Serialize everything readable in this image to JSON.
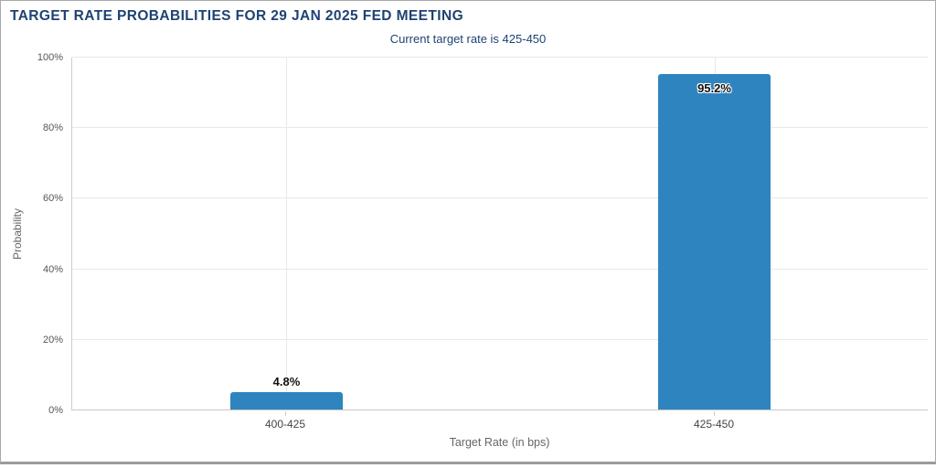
{
  "chart_data": {
    "type": "bar",
    "title": "TARGET RATE PROBABILITIES FOR 29 JAN 2025 FED MEETING",
    "subtitle": "Current target rate is 425-450",
    "categories": [
      "400-425",
      "425-450"
    ],
    "values": [
      4.8,
      95.2
    ],
    "value_labels": [
      "4.8%",
      "95.2%"
    ],
    "xlabel": "Target Rate (in bps)",
    "ylabel": "Probability",
    "ylim": [
      0,
      100
    ],
    "yticks": [
      "0%",
      "20%",
      "40%",
      "60%",
      "80%",
      "100%"
    ],
    "grid": true,
    "legend": false,
    "bar_color": "#2e84bf",
    "title_color": "#1e4273",
    "gridline_color": "#e8e8e8",
    "axis_line_color": "#cccccc",
    "tick_label_color": "#555555",
    "axis_title_color": "#666666",
    "frame_border_color": "#a9a9a9"
  }
}
